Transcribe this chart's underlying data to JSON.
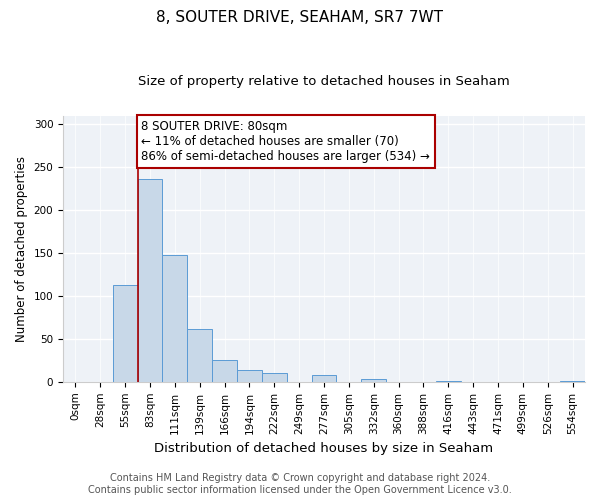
{
  "title": "8, SOUTER DRIVE, SEAHAM, SR7 7WT",
  "subtitle": "Size of property relative to detached houses in Seaham",
  "xlabel": "Distribution of detached houses by size in Seaham",
  "ylabel": "Number of detached properties",
  "bin_labels": [
    "0sqm",
    "28sqm",
    "55sqm",
    "83sqm",
    "111sqm",
    "139sqm",
    "166sqm",
    "194sqm",
    "222sqm",
    "249sqm",
    "277sqm",
    "305sqm",
    "332sqm",
    "360sqm",
    "388sqm",
    "416sqm",
    "443sqm",
    "471sqm",
    "499sqm",
    "526sqm",
    "554sqm"
  ],
  "bar_values": [
    0,
    0,
    113,
    236,
    148,
    62,
    25,
    14,
    10,
    0,
    8,
    0,
    3,
    0,
    0,
    1,
    0,
    0,
    0,
    0,
    1
  ],
  "bar_color": "#c8d8e8",
  "bar_edge_color": "#5b9bd5",
  "property_line_x": 3,
  "property_line_color": "#aa0000",
  "ylim": [
    0,
    310
  ],
  "yticks": [
    0,
    50,
    100,
    150,
    200,
    250,
    300
  ],
  "annotation_text": "8 SOUTER DRIVE: 80sqm\n← 11% of detached houses are smaller (70)\n86% of semi-detached houses are larger (534) →",
  "annotation_box_color": "#ffffff",
  "annotation_border_color": "#aa0000",
  "footer_line1": "Contains HM Land Registry data © Crown copyright and database right 2024.",
  "footer_line2": "Contains public sector information licensed under the Open Government Licence v3.0.",
  "background_color": "#eef2f7",
  "grid_color": "#ffffff",
  "title_fontsize": 11,
  "subtitle_fontsize": 9.5,
  "ylabel_fontsize": 8.5,
  "xlabel_fontsize": 9.5,
  "tick_fontsize": 7.5,
  "footer_fontsize": 7.0,
  "annotation_fontsize": 8.5
}
